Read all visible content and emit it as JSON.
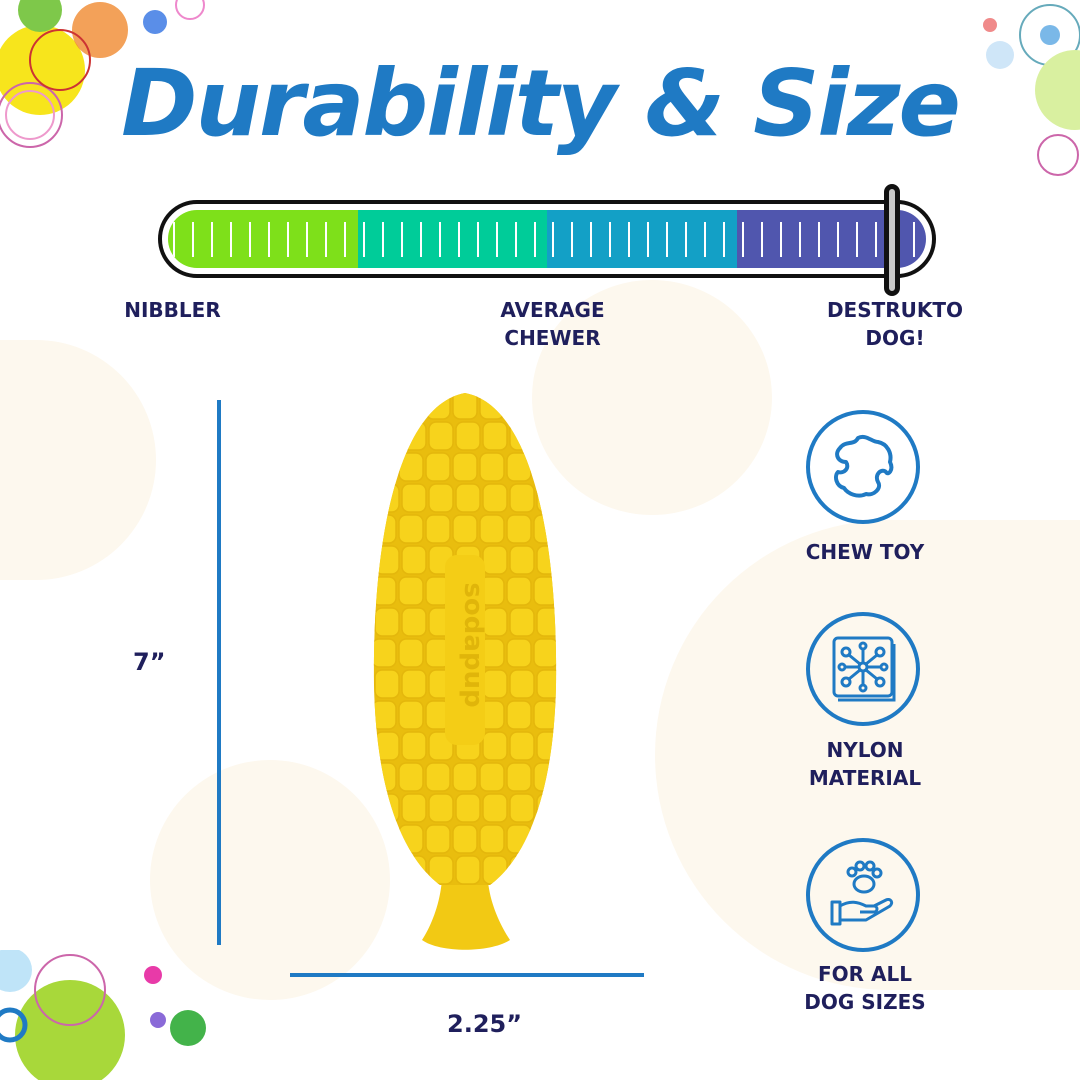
{
  "title": "Durability & Size",
  "durability": {
    "level_percent": 95,
    "segments": [
      {
        "color": "#7ee01a"
      },
      {
        "color": "#00cc99"
      },
      {
        "color": "#13a0c6"
      },
      {
        "color": "#5056ae"
      }
    ],
    "labels": {
      "low": "NIBBLER",
      "mid_line1": "AVERAGE",
      "mid_line2": "CHEWER",
      "high_line1": "DESTRUKTO",
      "high_line2": "DOG!"
    }
  },
  "product": {
    "height": "7”",
    "width": "2.25”",
    "color": "#f7d31c",
    "embossed_brand": "sodapup"
  },
  "features": [
    {
      "icon": "chew-toy-icon",
      "line1": "CHEW TOY",
      "line2": ""
    },
    {
      "icon": "nylon-material-icon",
      "line1": "NYLON",
      "line2": "MATERIAL"
    },
    {
      "icon": "paw-hand-icon",
      "line1": "FOR ALL",
      "line2": "DOG SIZES"
    }
  ],
  "colors": {
    "accent": "#1f7ac4",
    "text": "#1f1f5c"
  }
}
